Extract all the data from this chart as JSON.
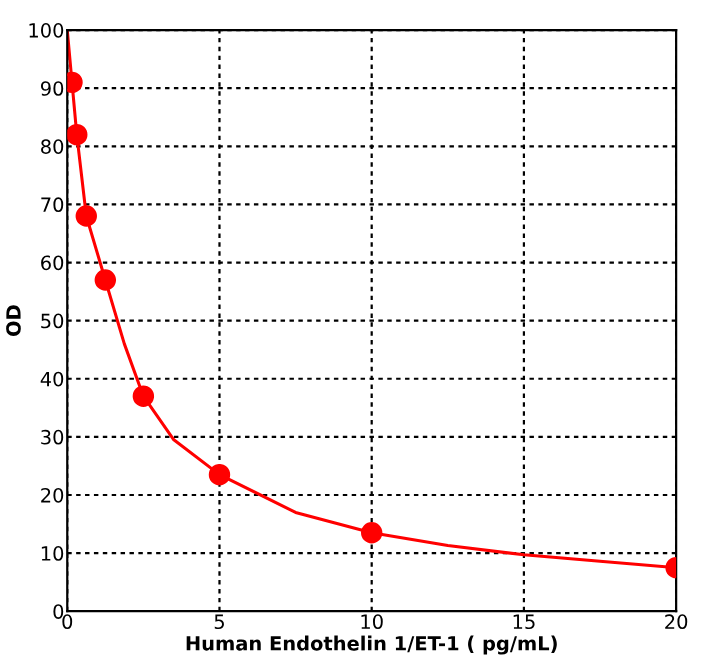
{
  "chart_data": {
    "type": "scatter",
    "xlabel": "Human Endothelin 1/ET-1 ( pg/mL)",
    "ylabel": "OD",
    "series": [
      {
        "color": "#ff0000",
        "marker": "circle",
        "x": [
          0.156,
          0.3125,
          0.625,
          1.25,
          2.5,
          5,
          10,
          20
        ],
        "values": [
          91,
          82,
          68,
          57,
          37,
          23.5,
          13.5,
          7.5
        ]
      },
      {
        "type": "line",
        "color": "#ff0000",
        "marker": "none",
        "line_style": "solid",
        "x": [
          0,
          0.156,
          0.3125,
          0.625,
          1.25,
          1.875,
          2.5,
          3.5,
          5,
          7.5,
          10,
          12.5,
          15,
          17.5,
          20
        ],
        "values": [
          100,
          91,
          82,
          68,
          57,
          46,
          37,
          29.5,
          23.5,
          17,
          13.5,
          11.3,
          9.7,
          8.6,
          7.5
        ]
      }
    ],
    "xlim": [
      0,
      20
    ],
    "ylim": [
      0,
      100
    ],
    "xticks": [
      0,
      5,
      10,
      15,
      20
    ],
    "yticks": [
      0,
      10,
      20,
      30,
      40,
      50,
      60,
      70,
      80,
      90,
      100
    ],
    "grid": true
  }
}
